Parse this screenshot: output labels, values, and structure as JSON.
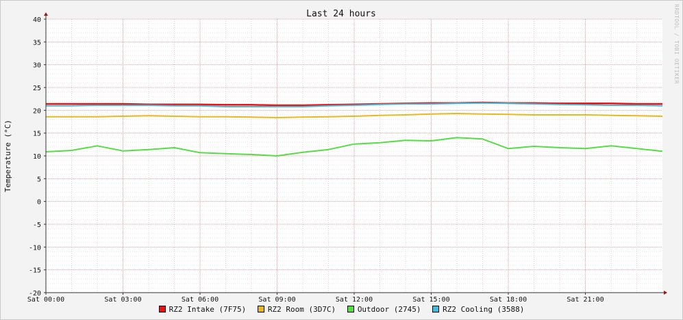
{
  "chart_data": {
    "type": "line",
    "title": "Last 24 hours",
    "ylabel": "Temperature (°C)",
    "xlabel": "",
    "ylim": [
      -20,
      40
    ],
    "y_ticks": [
      40,
      35,
      30,
      25,
      20,
      15,
      10,
      5,
      0,
      -5,
      -10,
      -15,
      -20
    ],
    "y_tick_labels": [
      "40",
      "35",
      "30",
      "25",
      "20",
      "15",
      "10",
      "5",
      "0",
      "-5",
      "-10",
      "-15",
      "-20"
    ],
    "x_hours": [
      0,
      3,
      6,
      9,
      12,
      15,
      18,
      21
    ],
    "x_tick_labels": [
      "Sat 00:00",
      "Sat 03:00",
      "Sat 06:00",
      "Sat 09:00",
      "Sat 12:00",
      "Sat 15:00",
      "Sat 18:00",
      "Sat 21:00"
    ],
    "xlim_hours": [
      0,
      24
    ],
    "grid": true,
    "legend_position": "bottom-center",
    "x": [
      0,
      1,
      2,
      3,
      4,
      5,
      6,
      7,
      8,
      9,
      10,
      11,
      12,
      13,
      14,
      15,
      16,
      17,
      18,
      19,
      20,
      21,
      22,
      23,
      24
    ],
    "series": [
      {
        "name": "RZ2 Intake (7F75)",
        "color": "#ee1111",
        "values": [
          21.4,
          21.4,
          21.4,
          21.4,
          21.3,
          21.3,
          21.3,
          21.2,
          21.2,
          21.1,
          21.1,
          21.2,
          21.3,
          21.4,
          21.5,
          21.6,
          21.6,
          21.7,
          21.6,
          21.6,
          21.5,
          21.5,
          21.5,
          21.4,
          21.4
        ]
      },
      {
        "name": "RZ2 Room (3D7C)",
        "color": "#e8b820",
        "values": [
          18.6,
          18.6,
          18.6,
          18.7,
          18.8,
          18.7,
          18.6,
          18.6,
          18.5,
          18.4,
          18.5,
          18.6,
          18.7,
          18.9,
          19.0,
          19.2,
          19.3,
          19.2,
          19.1,
          19.0,
          19.0,
          19.0,
          18.9,
          18.8,
          18.7
        ]
      },
      {
        "name": "Outdoor (2745)",
        "color": "#55dd44",
        "values": [
          10.9,
          11.2,
          12.2,
          11.1,
          11.4,
          11.8,
          10.7,
          10.5,
          10.3,
          10.0,
          10.8,
          11.4,
          12.6,
          12.9,
          13.4,
          13.3,
          14.0,
          13.7,
          11.6,
          12.1,
          11.8,
          11.6,
          12.2,
          11.6,
          11.0
        ]
      },
      {
        "name": "RZ2 Cooling (3588)",
        "color": "#44bbdd",
        "values": [
          21.0,
          21.0,
          21.1,
          21.1,
          21.1,
          21.0,
          21.0,
          20.8,
          20.8,
          20.8,
          20.8,
          21.0,
          21.1,
          21.3,
          21.4,
          21.4,
          21.5,
          21.6,
          21.5,
          21.4,
          21.3,
          21.2,
          21.1,
          21.1,
          21.0
        ]
      }
    ]
  },
  "watermark": "RRDTOOL / TOBI OETIKER"
}
